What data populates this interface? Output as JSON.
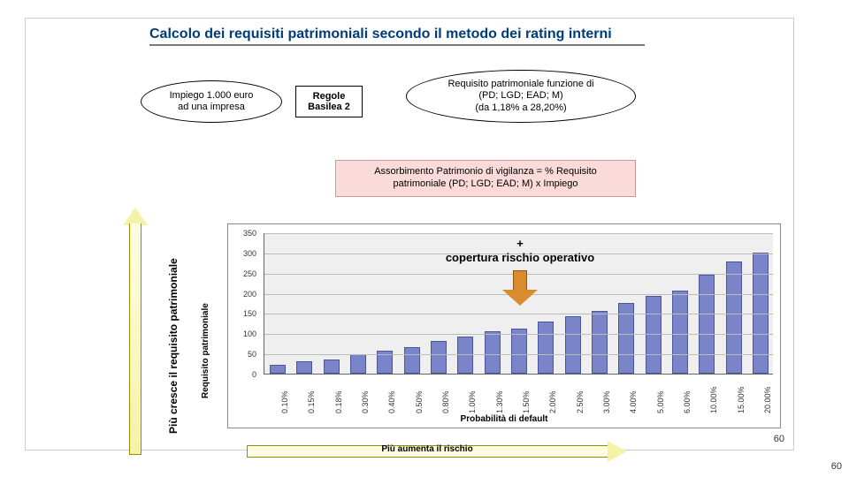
{
  "title_part1": "Calcolo dei requisiti patrimoniali secondo il ",
  "title_part2": "metodo dei rating interni",
  "oval_left": "Impiego 1.000 euro\nad una impresa",
  "rect_mid": "Regole\nBasilea 2",
  "oval_right": "Requisito patrimoniale funzione di\n(PD; LGD; EAD; M)\n(da 1,18% a 28,20%)",
  "pink_box": "Assorbimento Patrimonio di vigilanza = % Requisito\npatrimoniale (PD; LGD; EAD; M) x Impiego",
  "vlabel_left": "Più cresce il requisito patrimoniale",
  "arrow_right_label": "Più aumenta il rischio",
  "chart": {
    "ylabel": "Requisito patrimoniale",
    "xlabel": "Probabilità di default",
    "ymax": 350,
    "ytick_step": 50,
    "yticks": [
      "0",
      "50",
      "100",
      "150",
      "200",
      "250",
      "300",
      "350"
    ],
    "bar_color": "#7a84c8",
    "bar_border": "#4a559a",
    "grid_color": "#bbbbbb",
    "plot_bg": "#efefef",
    "categories": [
      "0.10%",
      "0.15%",
      "0.18%",
      "0.30%",
      "0.40%",
      "0.50%",
      "0.80%",
      "1.00%",
      "1.30%",
      "1.50%",
      "2.00%",
      "2.50%",
      "3.00%",
      "4.00%",
      "5.00%",
      "6.00%",
      "10.00%",
      "15.00%",
      "20.00%"
    ],
    "values": [
      22,
      30,
      34,
      48,
      58,
      65,
      82,
      92,
      105,
      112,
      130,
      143,
      155,
      175,
      192,
      205,
      245,
      278,
      300
    ]
  },
  "overlay": "+\ncopertura rischio operativo",
  "pagenum_in": "60",
  "pagenum_out": "60"
}
